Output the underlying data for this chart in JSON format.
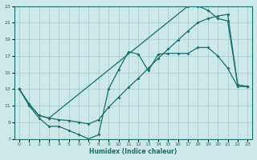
{
  "xlabel": "Humidex (Indice chaleur)",
  "bg_color": "#cce8e8",
  "grid_color": "#aacfcf",
  "line_color": "#1a6e6e",
  "line1_x": [
    0,
    1,
    2,
    3,
    4,
    5,
    6,
    7,
    8,
    9,
    10,
    11,
    12,
    13,
    14,
    15,
    16,
    17,
    18,
    19,
    20,
    21,
    22,
    23
  ],
  "line1_y": [
    13,
    11,
    9.5,
    8.5,
    8.5,
    8.0,
    7.5,
    7.0,
    7.5,
    13.0,
    15.3,
    17.5,
    17.2,
    15.2,
    17.2,
    17.3,
    17.3,
    17.3,
    18.0,
    18.0,
    17.0,
    15.5,
    13.3,
    13.3
  ],
  "line2_x": [
    0,
    1,
    2,
    3,
    17,
    18,
    19,
    20,
    21,
    22,
    23
  ],
  "line2_y": [
    13,
    11.2,
    9.8,
    9.5,
    23.0,
    23.0,
    22.5,
    21.5,
    21.2,
    13.5,
    13.3
  ],
  "line3_x": [
    0,
    1,
    2,
    3,
    4,
    5,
    6,
    7,
    8,
    9,
    10,
    11,
    12,
    13,
    14,
    15,
    16,
    17,
    18,
    19,
    20,
    21,
    22,
    23
  ],
  "line3_y": [
    13.0,
    11.2,
    9.8,
    9.5,
    9.3,
    9.2,
    9.0,
    8.8,
    9.3,
    10.8,
    12.0,
    13.2,
    14.3,
    15.5,
    16.7,
    17.8,
    18.9,
    20.0,
    21.0,
    21.5,
    21.8,
    22.0,
    13.5,
    13.3
  ],
  "xlim": [
    -0.5,
    23.5
  ],
  "ylim": [
    7,
    23
  ],
  "xticks": [
    0,
    1,
    2,
    3,
    4,
    5,
    6,
    7,
    8,
    9,
    10,
    11,
    12,
    13,
    14,
    15,
    16,
    17,
    18,
    19,
    20,
    21,
    22,
    23
  ],
  "yticks": [
    7,
    9,
    11,
    13,
    15,
    17,
    19,
    21,
    23
  ]
}
